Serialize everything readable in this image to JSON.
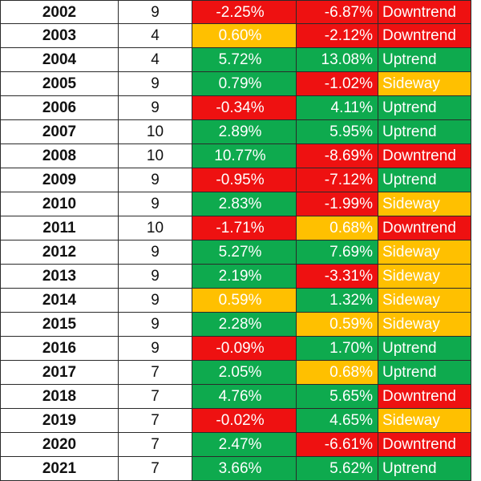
{
  "colors": {
    "red": "#ee1111",
    "green": "#0eaa4e",
    "yellow": "#ffc000"
  },
  "rows": [
    {
      "year": "2002",
      "count": "9",
      "p1": "-2.25%",
      "p1_color": "red",
      "p2": "-6.87%",
      "p2_color": "red",
      "trend": "Downtrend",
      "trend_color": "red"
    },
    {
      "year": "2003",
      "count": "4",
      "p1": "0.60%",
      "p1_color": "yellow",
      "p2": "-2.12%",
      "p2_color": "red",
      "trend": "Downtrend",
      "trend_color": "red"
    },
    {
      "year": "2004",
      "count": "4",
      "p1": "5.72%",
      "p1_color": "green",
      "p2": "13.08%",
      "p2_color": "green",
      "trend": "Uptrend",
      "trend_color": "green"
    },
    {
      "year": "2005",
      "count": "9",
      "p1": "0.79%",
      "p1_color": "green",
      "p2": "-1.02%",
      "p2_color": "red",
      "trend": "Sideway",
      "trend_color": "yellow"
    },
    {
      "year": "2006",
      "count": "9",
      "p1": "-0.34%",
      "p1_color": "red",
      "p2": "4.11%",
      "p2_color": "green",
      "trend": "Uptrend",
      "trend_color": "green"
    },
    {
      "year": "2007",
      "count": "10",
      "p1": "2.89%",
      "p1_color": "green",
      "p2": "5.95%",
      "p2_color": "green",
      "trend": "Uptrend",
      "trend_color": "green"
    },
    {
      "year": "2008",
      "count": "10",
      "p1": "10.77%",
      "p1_color": "green",
      "p2": "-8.69%",
      "p2_color": "red",
      "trend": "Downtrend",
      "trend_color": "red"
    },
    {
      "year": "2009",
      "count": "9",
      "p1": "-0.95%",
      "p1_color": "red",
      "p2": "-7.12%",
      "p2_color": "red",
      "trend": "Uptrend",
      "trend_color": "green"
    },
    {
      "year": "2010",
      "count": "9",
      "p1": "2.83%",
      "p1_color": "green",
      "p2": "-1.99%",
      "p2_color": "red",
      "trend": "Sideway",
      "trend_color": "yellow"
    },
    {
      "year": "2011",
      "count": "10",
      "p1": "-1.71%",
      "p1_color": "red",
      "p2": "0.68%",
      "p2_color": "yellow",
      "trend": "Downtrend",
      "trend_color": "red"
    },
    {
      "year": "2012",
      "count": "9",
      "p1": "5.27%",
      "p1_color": "green",
      "p2": "7.69%",
      "p2_color": "green",
      "trend": "Sideway",
      "trend_color": "yellow"
    },
    {
      "year": "2013",
      "count": "9",
      "p1": "2.19%",
      "p1_color": "green",
      "p2": "-3.31%",
      "p2_color": "red",
      "trend": "Sideway",
      "trend_color": "yellow"
    },
    {
      "year": "2014",
      "count": "9",
      "p1": "0.59%",
      "p1_color": "yellow",
      "p2": "1.32%",
      "p2_color": "green",
      "trend": "Sideway",
      "trend_color": "yellow"
    },
    {
      "year": "2015",
      "count": "9",
      "p1": "2.28%",
      "p1_color": "green",
      "p2": "0.59%",
      "p2_color": "yellow",
      "trend": "Sideway",
      "trend_color": "yellow"
    },
    {
      "year": "2016",
      "count": "9",
      "p1": "-0.09%",
      "p1_color": "red",
      "p2": "1.70%",
      "p2_color": "green",
      "trend": "Uptrend",
      "trend_color": "green"
    },
    {
      "year": "2017",
      "count": "7",
      "p1": "2.05%",
      "p1_color": "green",
      "p2": "0.68%",
      "p2_color": "yellow",
      "trend": "Uptrend",
      "trend_color": "green"
    },
    {
      "year": "2018",
      "count": "7",
      "p1": "4.76%",
      "p1_color": "green",
      "p2": "5.65%",
      "p2_color": "green",
      "trend": "Downtrend",
      "trend_color": "red"
    },
    {
      "year": "2019",
      "count": "7",
      "p1": "-0.02%",
      "p1_color": "red",
      "p2": "4.65%",
      "p2_color": "green",
      "trend": "Sideway",
      "trend_color": "yellow"
    },
    {
      "year": "2020",
      "count": "7",
      "p1": "2.47%",
      "p1_color": "green",
      "p2": "-6.61%",
      "p2_color": "red",
      "trend": "Downtrend",
      "trend_color": "red"
    },
    {
      "year": "2021",
      "count": "7",
      "p1": "3.66%",
      "p1_color": "green",
      "p2": "5.62%",
      "p2_color": "green",
      "trend": "Uptrend",
      "trend_color": "green"
    }
  ]
}
